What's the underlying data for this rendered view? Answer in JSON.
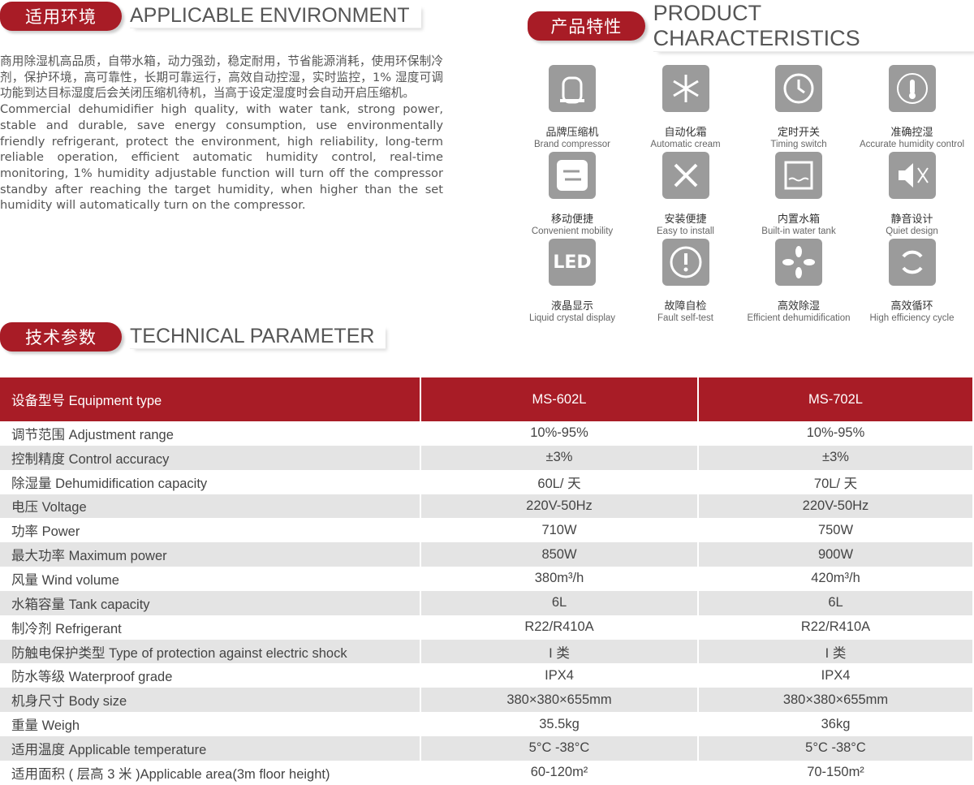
{
  "environment": {
    "title_cn": "适用环境",
    "title_en": "APPLICABLE ENVIRONMENT",
    "text_cn": "商用除湿机高品质，自带水箱，动力强劲，稳定耐用，节省能源消耗，使用环保制冷剂，保护环境，高可靠性，长期可靠运行，高效自动控湿，实时监控，1% 湿度可调功能到达目标湿度后会关闭压缩机待机，当高于设定湿度时会自动开启压缩机。",
    "text_en": "Commercial dehumidifier high quality, with water tank, strong power, stable and durable, save energy consumption, use environmentally friendly refrigerant, protect the environment, high reliability, long-term reliable operation, efficient automatic humidity control, real-time monitoring, 1% humidity adjustable function will turn off the compressor standby after reaching the target humidity, when higher than the set humidity will automatically turn on the compressor."
  },
  "characteristics": {
    "title_cn": "产品特性",
    "title_en": "PRODUCT CHARACTERISTICS",
    "items": [
      {
        "cn": "品牌压缩机",
        "en": "Brand compressor"
      },
      {
        "cn": "自动化霜",
        "en": "Automatic cream"
      },
      {
        "cn": "定时开关",
        "en": "Timing switch"
      },
      {
        "cn": "准确控湿",
        "en": "Accurate humidity control"
      },
      {
        "cn": "移动便捷",
        "en": "Convenient mobility"
      },
      {
        "cn": "安装便捷",
        "en": "Easy to install"
      },
      {
        "cn": "内置水箱",
        "en": "Built-in water tank"
      },
      {
        "cn": "静音设计",
        "en": "Quiet design"
      },
      {
        "cn": "液晶显示",
        "en": "Liquid crystal display",
        "icon_text": "LED"
      },
      {
        "cn": "故障自检",
        "en": "Fault self-test"
      },
      {
        "cn": "高效除湿",
        "en": "Efficient dehumidification"
      },
      {
        "cn": "高效循环",
        "en": "High efficiency cycle"
      }
    ]
  },
  "parameters": {
    "title_cn": "技术参数",
    "title_en": "TECHNICAL PARAMETER",
    "header": [
      "设备型号 Equipment type",
      "MS-602L",
      "MS-702L"
    ],
    "rows": [
      [
        "调节范围 Adjustment range",
        "10%-95%",
        "10%-95%"
      ],
      [
        "控制精度 Control accuracy",
        "±3%",
        "±3%"
      ],
      [
        "除湿量 Dehumidification capacity",
        "60L/ 天",
        "70L/ 天"
      ],
      [
        "电压 Voltage",
        "220V-50Hz",
        "220V-50Hz"
      ],
      [
        "功率 Power",
        "710W",
        "750W"
      ],
      [
        "最大功率 Maximum power",
        "850W",
        "900W"
      ],
      [
        "风量 Wind volume",
        "380m³/h",
        "420m³/h"
      ],
      [
        "水箱容量 Tank capacity",
        "6L",
        "6L"
      ],
      [
        "制冷剂 Refrigerant",
        "R22/R410A",
        "R22/R410A"
      ],
      [
        "防触电保护类型 Type of protection against electric shock",
        "I 类",
        "I 类"
      ],
      [
        "防水等级 Waterproof grade",
        "IPX4",
        "IPX4"
      ],
      [
        "机身尺寸 Body size",
        "380×380×655mm",
        "380×380×655mm"
      ],
      [
        "重量 Weigh",
        "35.5kg",
        "36kg"
      ],
      [
        "适用温度 Applicable temperature",
        "5°C -38°C",
        "5°C -38°C"
      ],
      [
        "适用面积 ( 层高 3 米 )Applicable area(3m floor height)",
        "60-120m²",
        "70-150m²"
      ]
    ]
  }
}
